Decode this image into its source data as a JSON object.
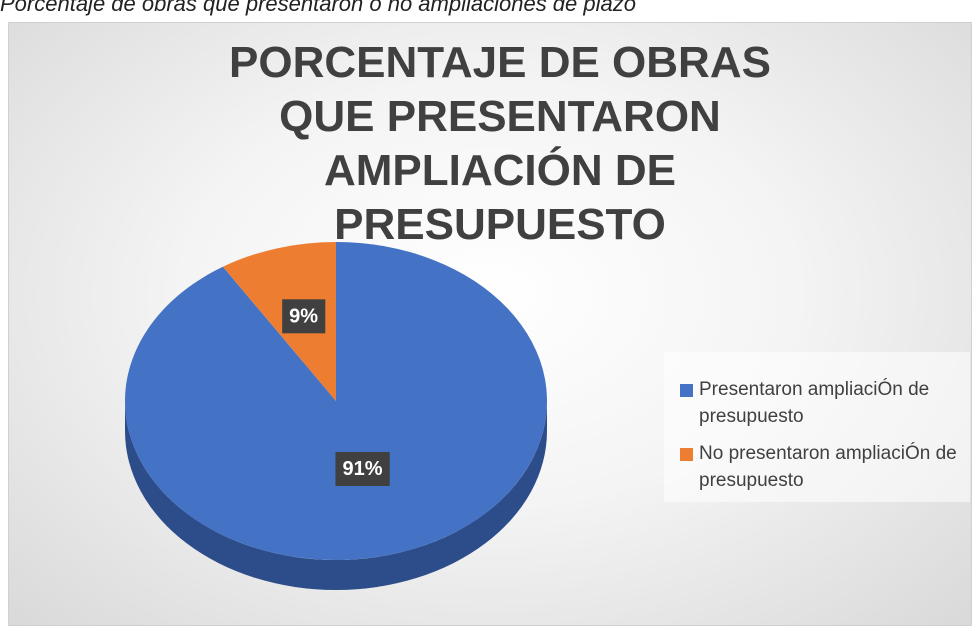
{
  "caption": "Porcentaje de obras que presentaron o no ampliaciones de plazo",
  "chart_data": {
    "type": "pie",
    "title": "PORCENTAJE DE OBRAS QUE PRESENTARON AMPLIACIÓN DE PRESUPUESTO",
    "categories": [
      "Presentaron ampliaciÓn de presupuesto",
      "No presentaron ampliaciÓn de presupuesto"
    ],
    "values": [
      91,
      9
    ],
    "value_labels": [
      "91%",
      "9%"
    ],
    "colors": [
      "#4472c4",
      "#ed7d31"
    ],
    "legend": "right"
  }
}
